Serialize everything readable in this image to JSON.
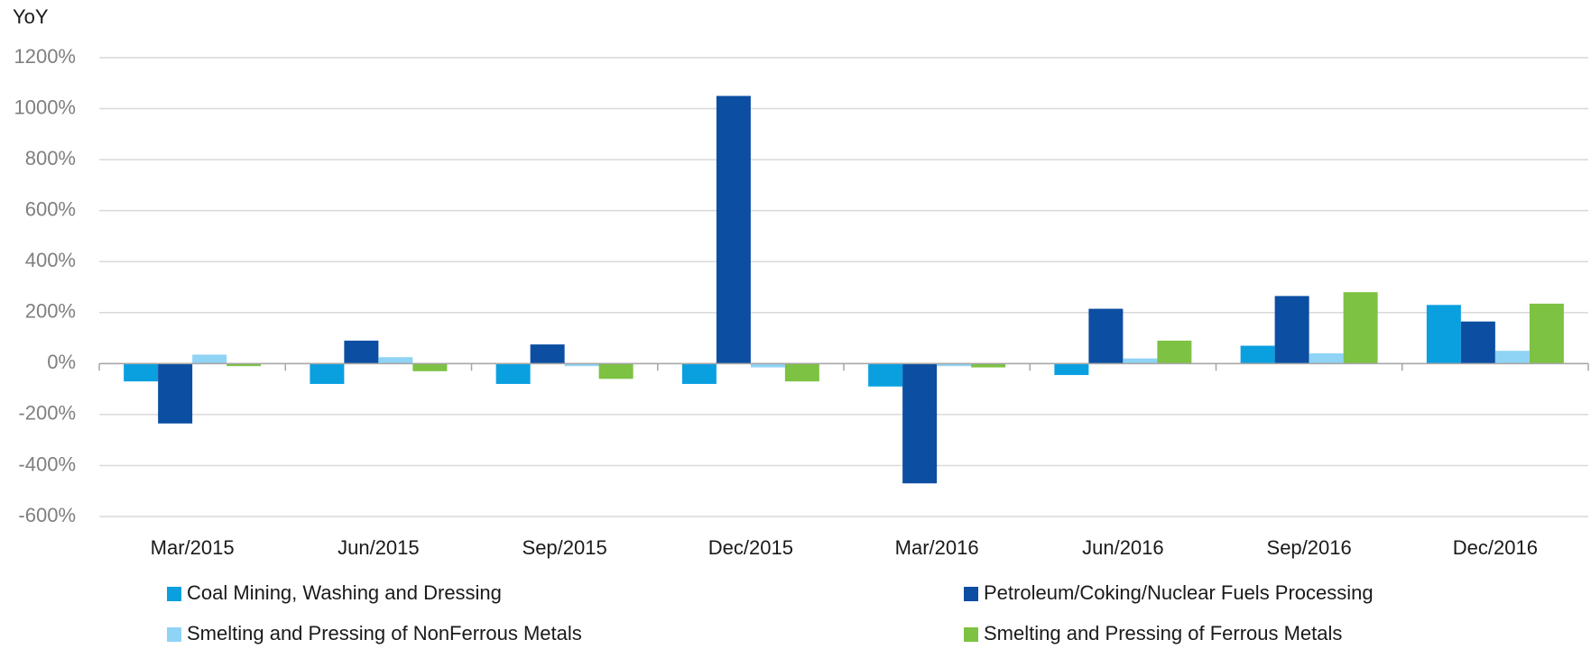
{
  "chart_data": {
    "type": "bar",
    "y_axis_label": "YoY",
    "categories": [
      "Mar/2015",
      "Jun/2015",
      "Sep/2015",
      "Dec/2015",
      "Mar/2016",
      "Jun/2016",
      "Sep/2016",
      "Dec/2016"
    ],
    "series": [
      {
        "name": "Coal Mining, Washing and Dressing",
        "color": "#0aa0e0",
        "values": [
          -70,
          -80,
          -80,
          -80,
          -90,
          -45,
          70,
          230
        ]
      },
      {
        "name": "Petroleum/Coking/Nuclear Fuels Processing",
        "color": "#0b4ea2",
        "values": [
          -235,
          90,
          75,
          1050,
          -470,
          215,
          265,
          165
        ]
      },
      {
        "name": "Smelting and Pressing of NonFerrous Metals",
        "color": "#8fd3f5",
        "values": [
          35,
          25,
          -10,
          -15,
          -10,
          20,
          40,
          50
        ]
      },
      {
        "name": "Smelting and Pressing of Ferrous Metals",
        "color": "#7dc242",
        "values": [
          -10,
          -30,
          -60,
          -70,
          -15,
          90,
          280,
          235
        ]
      }
    ],
    "ylim": [
      -600,
      1200
    ],
    "yticks": [
      {
        "value": -600,
        "label": "-600%"
      },
      {
        "value": -400,
        "label": "-400%"
      },
      {
        "value": -200,
        "label": "-200%"
      },
      {
        "value": 0,
        "label": "0%"
      },
      {
        "value": 200,
        "label": "200%"
      },
      {
        "value": 400,
        "label": "400%"
      },
      {
        "value": 600,
        "label": "600%"
      },
      {
        "value": 800,
        "label": "800%"
      },
      {
        "value": 1000,
        "label": "1000%"
      },
      {
        "value": 1200,
        "label": "1200%"
      }
    ],
    "grid": true
  }
}
